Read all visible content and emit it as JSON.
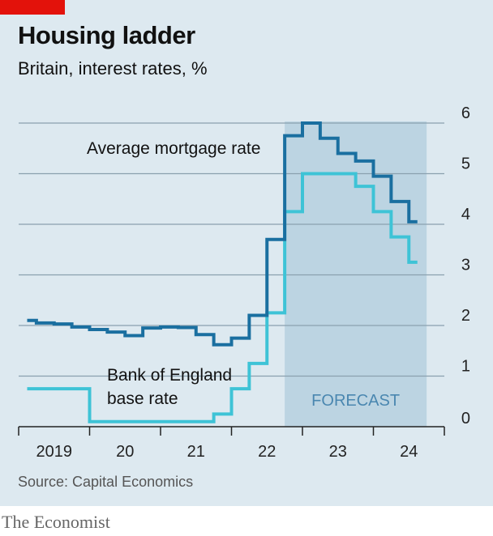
{
  "header": {
    "title": "Housing ladder",
    "subtitle": "Britain, interest rates, %"
  },
  "footer": {
    "source": "Source: Capital Economics",
    "brand": "The Economist"
  },
  "colors": {
    "background": "#dde9f0",
    "forecast_shade": "#bcd4e2",
    "mortgage_line": "#1a6fa0",
    "base_rate_line": "#3ec3d6",
    "brand_red": "#e3120b"
  },
  "chart_data": {
    "type": "line",
    "step": true,
    "title": "Housing ladder",
    "subtitle": "Britain, interest rates, %",
    "xlim": [
      2019.0,
      2025.0
    ],
    "ylim": [
      0,
      6
    ],
    "y_ticks": [
      "0",
      "1",
      "2",
      "3",
      "4",
      "5",
      "6"
    ],
    "y_axis_side": "right",
    "x_ticks": [
      "2019",
      "20",
      "21",
      "22",
      "23",
      "24"
    ],
    "grid": true,
    "forecast_region": {
      "x_start": 2022.75,
      "x_end": 2024.75,
      "label": "FORECAST"
    },
    "series": [
      {
        "name": "Average mortgage rate",
        "x": [
          2019.12,
          2019.25,
          2019.5,
          2019.75,
          2020.0,
          2020.25,
          2020.5,
          2020.75,
          2021.0,
          2021.25,
          2021.5,
          2021.75,
          2022.0,
          2022.25,
          2022.5,
          2022.75,
          2023.0,
          2023.25,
          2023.5,
          2023.75,
          2024.0,
          2024.25,
          2024.5,
          2024.62
        ],
        "values": [
          2.1,
          2.05,
          2.03,
          1.97,
          1.92,
          1.87,
          1.8,
          1.95,
          1.97,
          1.96,
          1.82,
          1.62,
          1.75,
          2.2,
          3.7,
          5.75,
          6.0,
          5.7,
          5.4,
          5.25,
          4.95,
          4.45,
          4.05,
          4.05
        ]
      },
      {
        "name": "Bank of England base rate",
        "x": [
          2019.12,
          2019.25,
          2019.5,
          2019.75,
          2020.0,
          2020.25,
          2020.5,
          2020.75,
          2021.0,
          2021.25,
          2021.5,
          2021.75,
          2022.0,
          2022.25,
          2022.5,
          2022.75,
          2023.0,
          2023.25,
          2023.5,
          2023.75,
          2024.0,
          2024.25,
          2024.5,
          2024.62
        ],
        "values": [
          0.75,
          0.75,
          0.75,
          0.75,
          0.1,
          0.1,
          0.1,
          0.1,
          0.1,
          0.1,
          0.1,
          0.25,
          0.75,
          1.25,
          2.25,
          4.25,
          5.0,
          5.0,
          5.0,
          4.75,
          4.25,
          3.75,
          3.25,
          3.25
        ]
      }
    ],
    "annotations": {
      "mortgage_label": "Average mortgage rate",
      "base_label_line1": "Bank of England",
      "base_label_line2": "base rate"
    }
  }
}
